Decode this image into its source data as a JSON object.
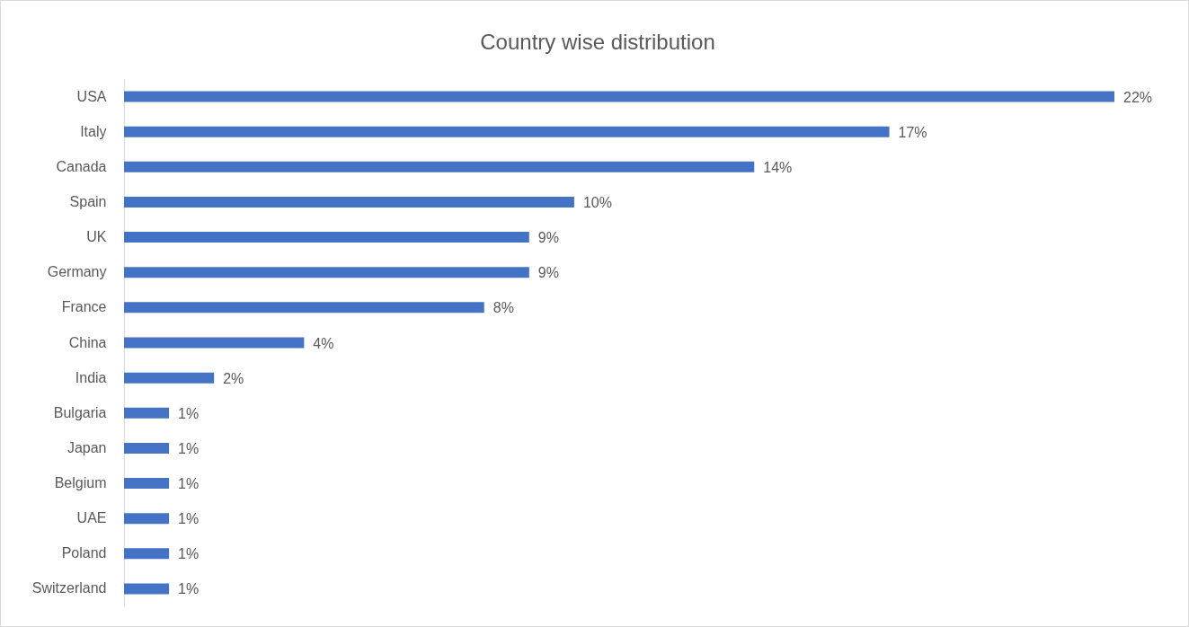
{
  "chart_data": {
    "type": "bar",
    "orientation": "horizontal",
    "title": "Country wise distribution",
    "categories": [
      "USA",
      "Italy",
      "Canada",
      "Spain",
      "UK",
      "Germany",
      "France",
      "China",
      "India",
      "Bulgaria",
      "Japan",
      "Belgium",
      "UAE",
      "Poland",
      "Switzerland"
    ],
    "values": [
      22,
      17,
      14,
      10,
      9,
      9,
      8,
      4,
      2,
      1,
      1,
      1,
      1,
      1,
      1
    ],
    "value_labels": [
      "22%",
      "17%",
      "14%",
      "10%",
      "9%",
      "9%",
      "8%",
      "4%",
      "2%",
      "1%",
      "1%",
      "1%",
      "1%",
      "1%",
      "1%"
    ],
    "color": "#4472c4"
  }
}
